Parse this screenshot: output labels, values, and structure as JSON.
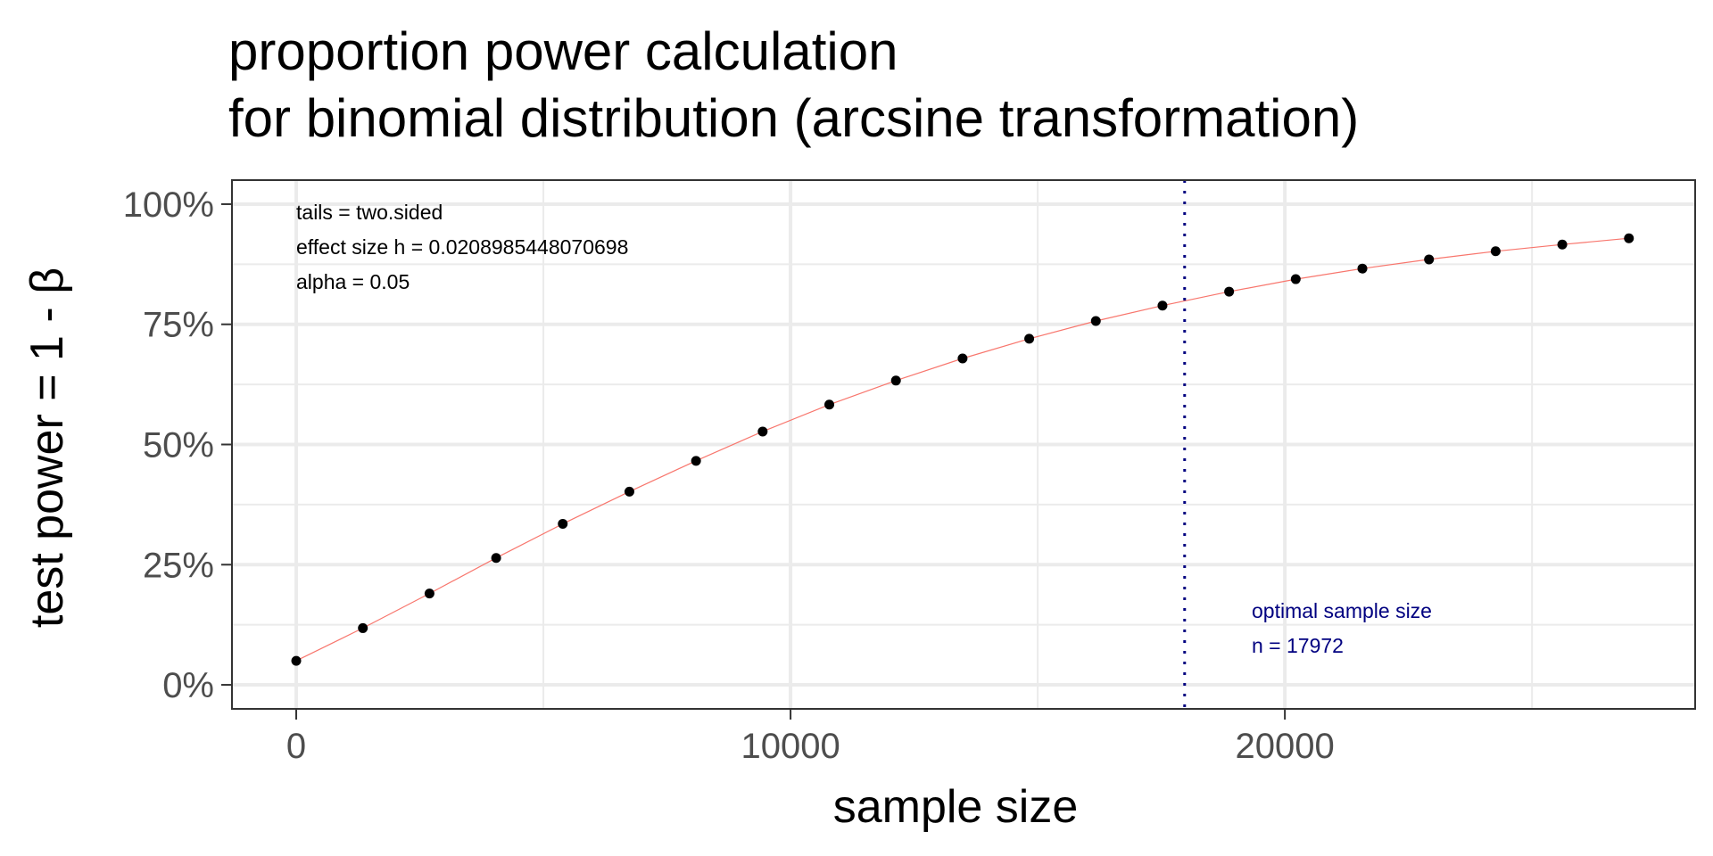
{
  "chart_data": {
    "type": "scatter",
    "title_lines": [
      "proportion power calculation",
      "for binomial distribution (arcsine transformation)"
    ],
    "xlabel": "sample size",
    "ylabel": "test power = 1 - β",
    "xlim": [
      -1300,
      28300
    ],
    "ylim": [
      -0.05,
      1.05
    ],
    "x_ticks": [
      0,
      10000,
      20000
    ],
    "x_tick_labels": [
      "0",
      "10000",
      "20000"
    ],
    "y_ticks": [
      0,
      0.25,
      0.5,
      0.75,
      1.0
    ],
    "y_tick_labels": [
      "0%",
      "25%",
      "50%",
      "75%",
      "100%"
    ],
    "grid": true,
    "series": [
      {
        "color": "#f8766d",
        "line": true,
        "x": [
          0,
          1348,
          2696,
          4044,
          5392,
          6740,
          8088,
          9436,
          10784,
          12132,
          13480,
          14828,
          16176,
          17524,
          18872,
          20220,
          21568,
          22916,
          24264,
          25612,
          26960
        ],
        "y": [
          0.05,
          0.118,
          0.19,
          0.264,
          0.335,
          0.402,
          0.466,
          0.527,
          0.583,
          0.633,
          0.679,
          0.72,
          0.757,
          0.789,
          0.818,
          0.844,
          0.866,
          0.885,
          0.902,
          0.916,
          0.929
        ]
      }
    ],
    "vline": {
      "x": 17972,
      "color": "#000080",
      "style": "dotted"
    },
    "annotation_top_left": [
      "tails = two.sided",
      "effect size h = 0.0208985448070698",
      "alpha = 0.05"
    ],
    "annotation_bottom_right": [
      "optimal sample size",
      "n = 17972"
    ],
    "annotation_bottom_right_color": "#000080"
  }
}
